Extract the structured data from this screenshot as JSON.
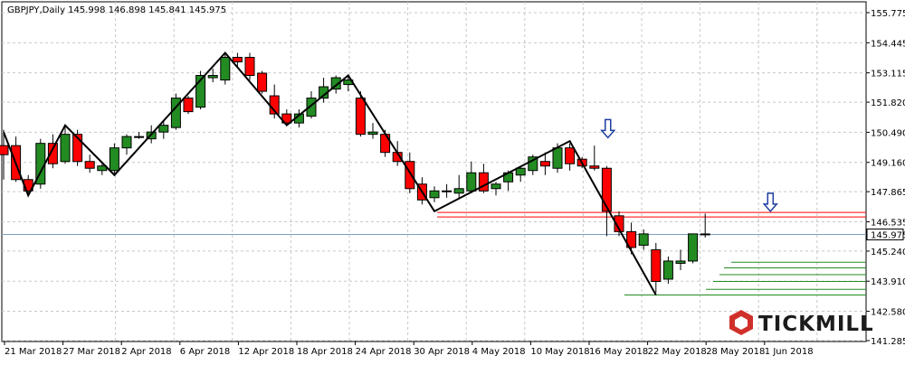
{
  "chart_data": {
    "type": "candlestick",
    "symbol_header": "GBPJPY,Daily  145.998 146.898 145.841 145.975",
    "current_price_label": "145.975",
    "brand": "TICKMILL",
    "ylim": [
      141.28,
      156.4
    ],
    "y_ticks": [
      "155.775",
      "154.445",
      "153.115",
      "151.820",
      "150.490",
      "149.160",
      "147.865",
      "146.535",
      "145.240",
      "143.910",
      "142.580",
      "141.285"
    ],
    "x_ticks": [
      "21 Mar 2018",
      "27 Mar 2018",
      "2 Apr 2018",
      "6 Apr 2018",
      "12 Apr 2018",
      "18 Apr 2018",
      "24 Apr 2018",
      "30 Apr 2018",
      "4 May 2018",
      "10 May 2018",
      "16 May 2018",
      "22 May 2018",
      "28 May 2018",
      "1 Jun 2018"
    ],
    "grid": true,
    "candles": [
      {
        "o": 149.9,
        "h": 150.6,
        "l": 148.4,
        "c": 149.5
      },
      {
        "o": 149.9,
        "h": 150.3,
        "l": 148.3,
        "c": 148.4
      },
      {
        "o": 148.4,
        "h": 148.6,
        "l": 147.7,
        "c": 147.9
      },
      {
        "o": 148.2,
        "h": 150.2,
        "l": 148.0,
        "c": 150.0
      },
      {
        "o": 150.0,
        "h": 150.4,
        "l": 148.9,
        "c": 149.1
      },
      {
        "o": 149.2,
        "h": 150.8,
        "l": 149.1,
        "c": 150.4
      },
      {
        "o": 150.4,
        "h": 150.6,
        "l": 149.0,
        "c": 149.2
      },
      {
        "o": 149.2,
        "h": 149.5,
        "l": 148.7,
        "c": 148.9
      },
      {
        "o": 148.8,
        "h": 149.1,
        "l": 148.6,
        "c": 149.0
      },
      {
        "o": 148.8,
        "h": 150.0,
        "l": 148.6,
        "c": 149.8
      },
      {
        "o": 149.8,
        "h": 150.4,
        "l": 149.5,
        "c": 150.3
      },
      {
        "o": 150.3,
        "h": 150.5,
        "l": 150.2,
        "c": 150.3
      },
      {
        "o": 150.2,
        "h": 150.8,
        "l": 150.0,
        "c": 150.5
      },
      {
        "o": 150.5,
        "h": 151.0,
        "l": 150.2,
        "c": 150.8
      },
      {
        "o": 150.7,
        "h": 152.2,
        "l": 150.6,
        "c": 152.0
      },
      {
        "o": 152.0,
        "h": 152.1,
        "l": 151.3,
        "c": 151.4
      },
      {
        "o": 151.6,
        "h": 153.2,
        "l": 151.5,
        "c": 153.0
      },
      {
        "o": 152.9,
        "h": 153.3,
        "l": 152.7,
        "c": 153.0
      },
      {
        "o": 152.8,
        "h": 154.0,
        "l": 152.6,
        "c": 153.8
      },
      {
        "o": 153.8,
        "h": 154.0,
        "l": 153.4,
        "c": 153.6
      },
      {
        "o": 153.8,
        "h": 154.0,
        "l": 152.8,
        "c": 153.0
      },
      {
        "o": 153.1,
        "h": 153.2,
        "l": 152.2,
        "c": 152.3
      },
      {
        "o": 152.1,
        "h": 152.6,
        "l": 151.1,
        "c": 151.3
      },
      {
        "o": 151.3,
        "h": 151.5,
        "l": 150.8,
        "c": 150.9
      },
      {
        "o": 150.9,
        "h": 151.5,
        "l": 150.7,
        "c": 151.3
      },
      {
        "o": 151.2,
        "h": 152.3,
        "l": 151.1,
        "c": 152.0
      },
      {
        "o": 152.0,
        "h": 152.9,
        "l": 151.8,
        "c": 152.5
      },
      {
        "o": 152.4,
        "h": 153.0,
        "l": 152.2,
        "c": 152.9
      },
      {
        "o": 152.6,
        "h": 153.0,
        "l": 152.3,
        "c": 152.8
      },
      {
        "o": 152.0,
        "h": 152.3,
        "l": 150.3,
        "c": 150.4
      },
      {
        "o": 150.4,
        "h": 150.9,
        "l": 150.2,
        "c": 150.5
      },
      {
        "o": 150.4,
        "h": 150.6,
        "l": 149.4,
        "c": 149.6
      },
      {
        "o": 149.6,
        "h": 150.1,
        "l": 149.0,
        "c": 149.2
      },
      {
        "o": 149.2,
        "h": 149.6,
        "l": 147.8,
        "c": 148.0
      },
      {
        "o": 148.2,
        "h": 148.5,
        "l": 147.3,
        "c": 147.5
      },
      {
        "o": 147.6,
        "h": 148.1,
        "l": 147.4,
        "c": 147.9
      },
      {
        "o": 147.9,
        "h": 148.2,
        "l": 147.6,
        "c": 147.9
      },
      {
        "o": 147.8,
        "h": 148.6,
        "l": 147.6,
        "c": 148.0
      },
      {
        "o": 147.9,
        "h": 149.2,
        "l": 147.8,
        "c": 148.7
      },
      {
        "o": 148.7,
        "h": 149.1,
        "l": 147.8,
        "c": 147.9
      },
      {
        "o": 148.0,
        "h": 148.3,
        "l": 147.7,
        "c": 148.2
      },
      {
        "o": 148.3,
        "h": 148.8,
        "l": 147.9,
        "c": 148.7
      },
      {
        "o": 148.6,
        "h": 149.0,
        "l": 148.3,
        "c": 148.9
      },
      {
        "o": 148.8,
        "h": 149.5,
        "l": 148.6,
        "c": 149.4
      },
      {
        "o": 149.2,
        "h": 149.6,
        "l": 148.6,
        "c": 149.0
      },
      {
        "o": 148.9,
        "h": 150.0,
        "l": 148.7,
        "c": 149.8
      },
      {
        "o": 149.8,
        "h": 150.0,
        "l": 148.8,
        "c": 149.1
      },
      {
        "o": 149.3,
        "h": 149.4,
        "l": 148.9,
        "c": 149.0
      },
      {
        "o": 149.0,
        "h": 149.9,
        "l": 148.8,
        "c": 148.9
      },
      {
        "o": 148.9,
        "h": 149.0,
        "l": 145.9,
        "c": 147.0
      },
      {
        "o": 146.8,
        "h": 147.0,
        "l": 145.9,
        "c": 146.1
      },
      {
        "o": 146.1,
        "h": 146.5,
        "l": 145.1,
        "c": 145.4
      },
      {
        "o": 145.5,
        "h": 146.2,
        "l": 145.3,
        "c": 146.0
      },
      {
        "o": 145.3,
        "h": 145.6,
        "l": 143.4,
        "c": 143.9
      },
      {
        "o": 144.0,
        "h": 145.0,
        "l": 143.8,
        "c": 144.8
      },
      {
        "o": 144.7,
        "h": 145.3,
        "l": 144.4,
        "c": 144.8
      },
      {
        "o": 144.8,
        "h": 146.0,
        "l": 144.7,
        "c": 146.0
      },
      {
        "o": 145.998,
        "h": 146.898,
        "l": 145.841,
        "c": 145.975
      }
    ],
    "zigzag": [
      {
        "i": 0,
        "p": 150.5
      },
      {
        "i": 2,
        "p": 147.7
      },
      {
        "i": 5,
        "p": 150.8
      },
      {
        "i": 9,
        "p": 148.6
      },
      {
        "i": 18,
        "p": 154.0
      },
      {
        "i": 23,
        "p": 150.8
      },
      {
        "i": 28,
        "p": 153.0
      },
      {
        "i": 35,
        "p": 147.0
      },
      {
        "i": 46,
        "p": 150.1
      },
      {
        "i": 53,
        "p": 143.3
      }
    ],
    "resistance_lines": [
      146.95,
      146.75
    ],
    "support_lines": [
      144.75,
      144.5,
      144.2,
      143.9,
      143.55,
      143.3
    ],
    "up_color": "#228b22",
    "down_color": "#ff0000",
    "arrow_color": "#1f3f9f",
    "current_line_color": "#7f9fbf"
  }
}
